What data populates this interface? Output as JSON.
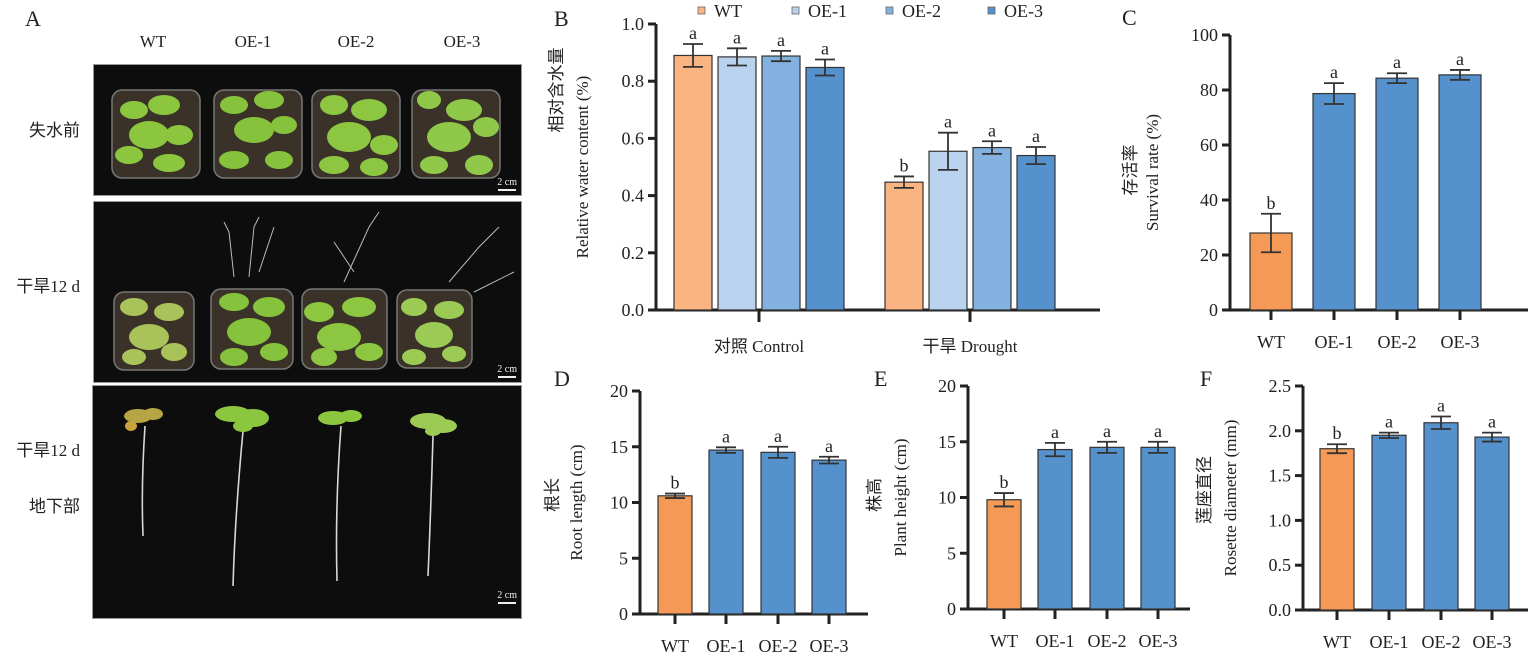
{
  "panel_a": {
    "letter": "A",
    "columns": [
      "WT",
      "OE-1",
      "OE-2",
      "OE-3"
    ],
    "rows": [
      "失水前",
      "干旱12 d",
      "干旱12 d",
      "地下部"
    ],
    "scale_bar": "2 cm"
  },
  "colors": {
    "wt_orange": "#F59A56",
    "wt_light_orange": "#F9B482",
    "oe1_light_blue": "#B9D3EE",
    "oe2_mid_blue": "#84B2E0",
    "oe3_blue": "#5592CD",
    "axis": "#222222"
  },
  "chart_data": [
    {
      "panel": "B",
      "type": "bar",
      "title": "",
      "ylabel_cn": "相对含水量",
      "ylabel": "Relative water content (%)",
      "xlabel": "",
      "categories": [
        "对照 Control",
        "干旱 Drought"
      ],
      "ylim": [
        0,
        1.0
      ],
      "yticks": [
        "0.0",
        "0.2",
        "0.4",
        "0.6",
        "0.8",
        "1.0"
      ],
      "legend": [
        "WT",
        "OE-1",
        "OE-2",
        "OE-3"
      ],
      "legend_position": "top",
      "series": [
        {
          "name": "WT",
          "values": [
            0.89,
            0.447
          ],
          "errors": [
            0.04,
            0.02
          ],
          "letters": [
            "a",
            "b"
          ]
        },
        {
          "name": "OE-1",
          "values": [
            0.885,
            0.555
          ],
          "errors": [
            0.03,
            0.065
          ],
          "letters": [
            "a",
            "a"
          ]
        },
        {
          "name": "OE-2",
          "values": [
            0.888,
            0.568
          ],
          "errors": [
            0.018,
            0.022
          ],
          "letters": [
            "a",
            "a"
          ]
        },
        {
          "name": "OE-3",
          "values": [
            0.848,
            0.54
          ],
          "errors": [
            0.028,
            0.03
          ],
          "letters": [
            "a",
            "a"
          ]
        }
      ]
    },
    {
      "panel": "C",
      "type": "bar",
      "ylabel_cn": "存活率",
      "ylabel": "Survival rate (%)",
      "categories": [
        "WT",
        "OE-1",
        "OE-2",
        "OE-3"
      ],
      "values": [
        28,
        78.7,
        84.3,
        85.5
      ],
      "errors": [
        7,
        3.8,
        1.8,
        1.8
      ],
      "letters": [
        "b",
        "a",
        "a",
        "a"
      ],
      "ylim": [
        0,
        100
      ],
      "yticks": [
        "0",
        "20",
        "40",
        "60",
        "80",
        "100"
      ]
    },
    {
      "panel": "D",
      "type": "bar",
      "ylabel_cn": "根长",
      "ylabel": "Root length (cm)",
      "categories": [
        "WT",
        "OE-1",
        "OE-2",
        "OE-3"
      ],
      "values": [
        10.6,
        14.7,
        14.5,
        13.8
      ],
      "errors": [
        0.2,
        0.25,
        0.5,
        0.3
      ],
      "letters": [
        "b",
        "a",
        "a",
        "a"
      ],
      "ylim": [
        0,
        20
      ],
      "yticks": [
        "0",
        "5",
        "10",
        "15",
        "20"
      ]
    },
    {
      "panel": "E",
      "type": "bar",
      "ylabel_cn": "株高",
      "ylabel": "Plant height (cm)",
      "categories": [
        "WT",
        "OE-1",
        "OE-2",
        "OE-3"
      ],
      "values": [
        9.8,
        14.3,
        14.5,
        14.5
      ],
      "errors": [
        0.6,
        0.6,
        0.5,
        0.5
      ],
      "letters": [
        "b",
        "a",
        "a",
        "a"
      ],
      "ylim": [
        0,
        20
      ],
      "yticks": [
        "0",
        "5",
        "10",
        "15",
        "20"
      ]
    },
    {
      "panel": "F",
      "type": "bar",
      "ylabel_cn": "莲座直径",
      "ylabel": "Rosette diameter (mm)",
      "categories": [
        "WT",
        "OE-1",
        "OE-2",
        "OE-3"
      ],
      "values": [
        1.8,
        1.95,
        2.09,
        1.93
      ],
      "errors": [
        0.05,
        0.03,
        0.07,
        0.05
      ],
      "letters": [
        "b",
        "a",
        "a",
        "a"
      ],
      "ylim": [
        0,
        2.5
      ],
      "yticks": [
        "0.0",
        "0.5",
        "1.0",
        "1.5",
        "2.0",
        "2.5"
      ]
    }
  ]
}
